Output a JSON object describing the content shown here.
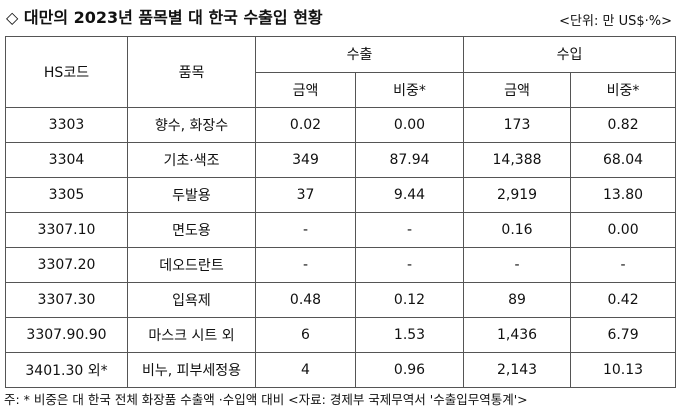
{
  "header": {
    "title": "◇ 대만의 2023년 품목별 대 한국 수출입 현황",
    "unit": "<단위: 만 US$·%>"
  },
  "table": {
    "columns": {
      "hs_code": "HS코드",
      "item": "품목",
      "export": "수출",
      "import": "수입",
      "export_amount": "금액",
      "export_share": "비중*",
      "import_amount": "금액",
      "import_share": "비중*"
    },
    "rows": [
      [
        "3303",
        "향수, 화장수",
        "0.02",
        "0.00",
        "173",
        "0.82"
      ],
      [
        "3304",
        "기초·색조",
        "349",
        "87.94",
        "14,388",
        "68.04"
      ],
      [
        "3305",
        "두발용",
        "37",
        "9.44",
        "2,919",
        "13.80"
      ],
      [
        "3307.10",
        "면도용",
        "-",
        "-",
        "0.16",
        "0.00"
      ],
      [
        "3307.20",
        "데오드란트",
        "-",
        "-",
        "-",
        "-"
      ],
      [
        "3307.30",
        "입욕제",
        "0.48",
        "0.12",
        "89",
        "0.42"
      ],
      [
        "3307.90.90",
        "마스크 시트 외",
        "6",
        "1.53",
        "1,436",
        "6.79"
      ],
      [
        "3401.30 외*",
        "비누, 피부세정용",
        "4",
        "0.96",
        "2,143",
        "10.13"
      ]
    ]
  },
  "footnote": "주: * 비중은 대 한국 전체 화장품 수출액 ·수입액 대비 <자료: 경제부 국제무역서 '수출입무역통계'>"
}
